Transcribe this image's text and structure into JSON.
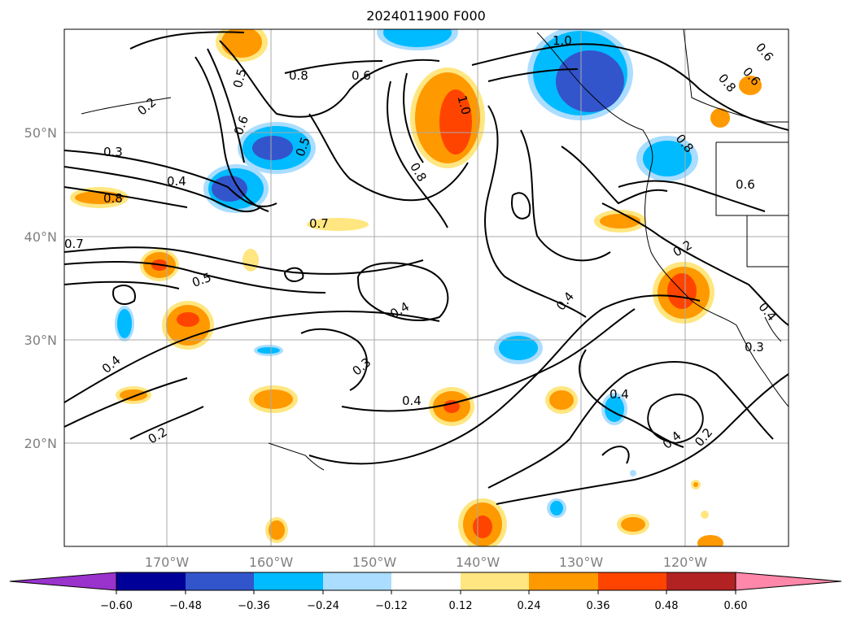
{
  "title": "2024011900 F000",
  "latitude_labels": [
    "50°N",
    "40°N",
    "30°N",
    "20°N"
  ],
  "longitude_labels": [
    "170°W",
    "160°W",
    "150°W",
    "140°W",
    "130°W",
    "120°W"
  ],
  "colorbar": {
    "ticks": [
      "−0.60",
      "−0.48",
      "−0.36",
      "−0.24",
      "−0.12",
      "0.12",
      "0.24",
      "0.36",
      "0.48",
      "0.60"
    ],
    "colors": [
      "#9933cc",
      "#000099",
      "#3355cc",
      "#00bbff",
      "#aaddff",
      "#ffffff",
      "#ffe680",
      "#ff9900",
      "#ff4400",
      "#b22222",
      "#ff88aa"
    ]
  },
  "contour_labels": [
    "1.0",
    "0.5",
    "0.8",
    "0.6",
    "0.2",
    "0.6",
    "0.5",
    "0.3",
    "0.4",
    "1.0",
    "0.8",
    "0.8",
    "0.6",
    "0.6",
    "0.8",
    "0.8",
    "0.6",
    "0.7",
    "0.7",
    "0.5",
    "0.2",
    "0.4",
    "0.4",
    "0.4",
    "0.3",
    "0.4",
    "0.4",
    "0.2",
    "0.4",
    "0.2",
    "0.4",
    "0.3"
  ]
}
